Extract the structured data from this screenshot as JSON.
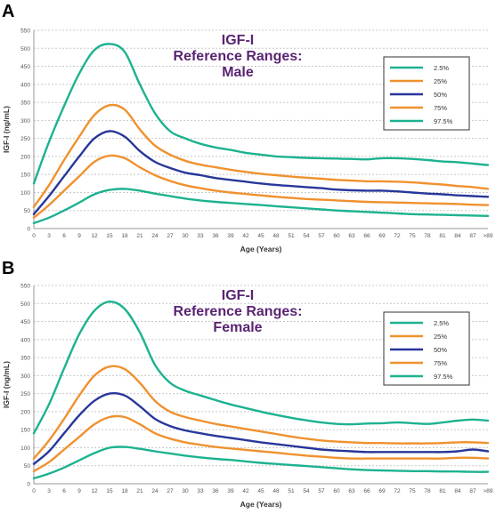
{
  "panels": [
    {
      "letter": "A",
      "chart_data": {
        "type": "line",
        "title": "IGF-I Reference Ranges: Male",
        "title_lines": [
          "IGF-I",
          "Reference Ranges:",
          "Male"
        ],
        "xlabel": "Age (Years)",
        "ylabel": "IGF-I (ng/mL)",
        "ylim": [
          0,
          550
        ],
        "xlim": [
          0,
          90
        ],
        "yticks": [
          0,
          50,
          100,
          150,
          200,
          250,
          300,
          350,
          400,
          450,
          500,
          550
        ],
        "xticks": [
          "0",
          "3",
          "6",
          "9",
          "12",
          "15",
          "18",
          "21",
          "24",
          "27",
          "30",
          "33",
          "36",
          "39",
          "42",
          "45",
          "48",
          "51",
          "54",
          "57",
          "60",
          "63",
          "66",
          "69",
          "72",
          "75",
          "78",
          "81",
          "84",
          "87",
          ">89"
        ],
        "grid": true,
        "legend_position": "top-right",
        "series": [
          {
            "name": "2.5%",
            "color": "#1db28f",
            "x": [
              0,
              3,
              6,
              9,
              12,
              15,
              18,
              21,
              24,
              27,
              30,
              33,
              36,
              39,
              42,
              45,
              48,
              51,
              54,
              57,
              60,
              63,
              66,
              69,
              72,
              75,
              78,
              81,
              84,
              87,
              90
            ],
            "values": [
              15,
              30,
              50,
              72,
              95,
              107,
              110,
              105,
              97,
              90,
              83,
              78,
              74,
              71,
              68,
              65,
              62,
              59,
              56,
              53,
              50,
              48,
              46,
              44,
              42,
              40,
              39,
              38,
              37,
              36,
              35
            ]
          },
          {
            "name": "25%",
            "color": "#f0912e",
            "x": [
              0,
              3,
              6,
              9,
              12,
              15,
              18,
              21,
              24,
              27,
              30,
              33,
              36,
              39,
              42,
              45,
              48,
              51,
              54,
              57,
              60,
              63,
              66,
              69,
              72,
              75,
              78,
              81,
              84,
              87,
              90
            ],
            "values": [
              30,
              65,
              105,
              145,
              185,
              202,
              195,
              170,
              148,
              132,
              120,
              112,
              105,
              100,
              96,
              92,
              88,
              85,
              82,
              80,
              78,
              76,
              74,
              73,
              72,
              71,
              70,
              69,
              68,
              66,
              65
            ]
          },
          {
            "name": "50%",
            "color": "#27379a",
            "x": [
              0,
              3,
              6,
              9,
              12,
              15,
              18,
              21,
              24,
              27,
              30,
              33,
              36,
              39,
              42,
              45,
              48,
              51,
              54,
              57,
              60,
              63,
              66,
              69,
              72,
              75,
              78,
              81,
              84,
              87,
              90
            ],
            "values": [
              40,
              90,
              145,
              200,
              250,
              270,
              255,
              215,
              185,
              168,
              155,
              148,
              140,
              135,
              130,
              125,
              121,
              118,
              115,
              112,
              108,
              106,
              105,
              105,
              103,
              100,
              97,
              95,
              92,
              90,
              88
            ]
          },
          {
            "name": "75%",
            "color": "#f0912e",
            "x": [
              0,
              3,
              6,
              9,
              12,
              15,
              18,
              21,
              24,
              27,
              30,
              33,
              36,
              39,
              42,
              45,
              48,
              51,
              54,
              57,
              60,
              63,
              66,
              69,
              72,
              75,
              78,
              81,
              84,
              87,
              90
            ],
            "values": [
              60,
              120,
              190,
              255,
              315,
              342,
              330,
              275,
              230,
              205,
              188,
              177,
              170,
              163,
              157,
              152,
              148,
              144,
              141,
              138,
              135,
              133,
              131,
              131,
              130,
              128,
              125,
              122,
              118,
              115,
              110
            ]
          },
          {
            "name": "97.5%",
            "color": "#1db28f",
            "x": [
              0,
              3,
              6,
              9,
              12,
              15,
              18,
              21,
              24,
              27,
              30,
              33,
              36,
              39,
              42,
              45,
              48,
              51,
              54,
              57,
              60,
              63,
              66,
              69,
              72,
              75,
              78,
              81,
              84,
              87,
              90
            ],
            "values": [
              125,
              240,
              340,
              430,
              495,
              512,
              490,
              400,
              320,
              270,
              250,
              235,
              225,
              218,
              210,
              205,
              200,
              198,
              196,
              195,
              194,
              193,
              192,
              195,
              195,
              193,
              190,
              186,
              184,
              180,
              176
            ]
          }
        ]
      }
    },
    {
      "letter": "B",
      "chart_data": {
        "type": "line",
        "title": "IGF-I Reference Ranges: Female",
        "title_lines": [
          "IGF-I",
          "Reference Ranges:",
          "Female"
        ],
        "xlabel": "Age (Years)",
        "ylabel": "IGF-I (ng/mL)",
        "ylim": [
          0,
          550
        ],
        "xlim": [
          0,
          90
        ],
        "yticks": [
          0,
          50,
          100,
          150,
          200,
          250,
          300,
          350,
          400,
          450,
          500,
          550
        ],
        "xticks": [
          "0",
          "3",
          "6",
          "9",
          "12",
          "15",
          "18",
          "21",
          "24",
          "27",
          "30",
          "33",
          "36",
          "39",
          "42",
          "45",
          "48",
          "51",
          "54",
          "57",
          "60",
          "63",
          "66",
          "69",
          "72",
          "75",
          "78",
          "81",
          "84",
          "87",
          ">89"
        ],
        "grid": true,
        "legend_position": "top-right",
        "series": [
          {
            "name": "2.5%",
            "color": "#1db28f",
            "x": [
              0,
              3,
              6,
              9,
              12,
              15,
              18,
              21,
              24,
              27,
              30,
              33,
              36,
              39,
              42,
              45,
              48,
              51,
              54,
              57,
              60,
              63,
              66,
              69,
              72,
              75,
              78,
              81,
              84,
              87,
              90
            ],
            "values": [
              15,
              28,
              45,
              65,
              85,
              100,
              102,
              97,
              90,
              84,
              78,
              73,
              69,
              66,
              62,
              58,
              55,
              52,
              49,
              46,
              43,
              40,
              38,
              37,
              36,
              35,
              35,
              34,
              34,
              33,
              33
            ]
          },
          {
            "name": "25%",
            "color": "#f0912e",
            "x": [
              0,
              3,
              6,
              9,
              12,
              15,
              18,
              21,
              24,
              27,
              30,
              33,
              36,
              39,
              42,
              45,
              48,
              51,
              54,
              57,
              60,
              63,
              66,
              69,
              72,
              75,
              78,
              81,
              84,
              87,
              90
            ],
            "values": [
              35,
              60,
              95,
              130,
              165,
              185,
              185,
              165,
              140,
              125,
              115,
              108,
              102,
              98,
              94,
              90,
              86,
              82,
              78,
              75,
              72,
              70,
              70,
              70,
              70,
              70,
              70,
              70,
              72,
              72,
              70
            ]
          },
          {
            "name": "50%",
            "color": "#27379a",
            "x": [
              0,
              3,
              6,
              9,
              12,
              15,
              18,
              21,
              24,
              27,
              30,
              33,
              36,
              39,
              42,
              45,
              48,
              51,
              54,
              57,
              60,
              63,
              66,
              69,
              72,
              75,
              78,
              81,
              84,
              87,
              90
            ],
            "values": [
              55,
              90,
              140,
              190,
              230,
              250,
              245,
              215,
              180,
              160,
              148,
              140,
              133,
              127,
              121,
              115,
              110,
              105,
              100,
              95,
              92,
              90,
              88,
              88,
              88,
              88,
              88,
              88,
              90,
              95,
              90
            ]
          },
          {
            "name": "75%",
            "color": "#f0912e",
            "x": [
              0,
              3,
              6,
              9,
              12,
              15,
              18,
              21,
              24,
              27,
              30,
              33,
              36,
              39,
              42,
              45,
              48,
              51,
              54,
              57,
              60,
              63,
              66,
              69,
              72,
              75,
              78,
              81,
              84,
              87,
              90
            ],
            "values": [
              70,
              120,
              180,
              245,
              300,
              325,
              318,
              280,
              230,
              200,
              185,
              175,
              166,
              159,
              152,
              145,
              138,
              131,
              125,
              120,
              117,
              115,
              113,
              113,
              112,
              112,
              112,
              113,
              115,
              115,
              113
            ]
          },
          {
            "name": "97.5%",
            "color": "#1db28f",
            "x": [
              0,
              3,
              6,
              9,
              12,
              15,
              18,
              21,
              24,
              27,
              30,
              33,
              36,
              39,
              42,
              45,
              48,
              51,
              54,
              57,
              60,
              63,
              66,
              69,
              72,
              75,
              78,
              81,
              84,
              87,
              90
            ],
            "values": [
              140,
              220,
              320,
              415,
              480,
              505,
              485,
              420,
              330,
              280,
              258,
              245,
              232,
              220,
              210,
              200,
              191,
              183,
              176,
              170,
              166,
              165,
              167,
              168,
              170,
              168,
              166,
              170,
              175,
              178,
              175
            ]
          }
        ]
      }
    }
  ],
  "style": {
    "title_color": "#5a2472",
    "axis_label_color": "#333333",
    "tick_color": "#555555",
    "grid_color": "#c8c8c8",
    "legend_border": "#333333"
  }
}
